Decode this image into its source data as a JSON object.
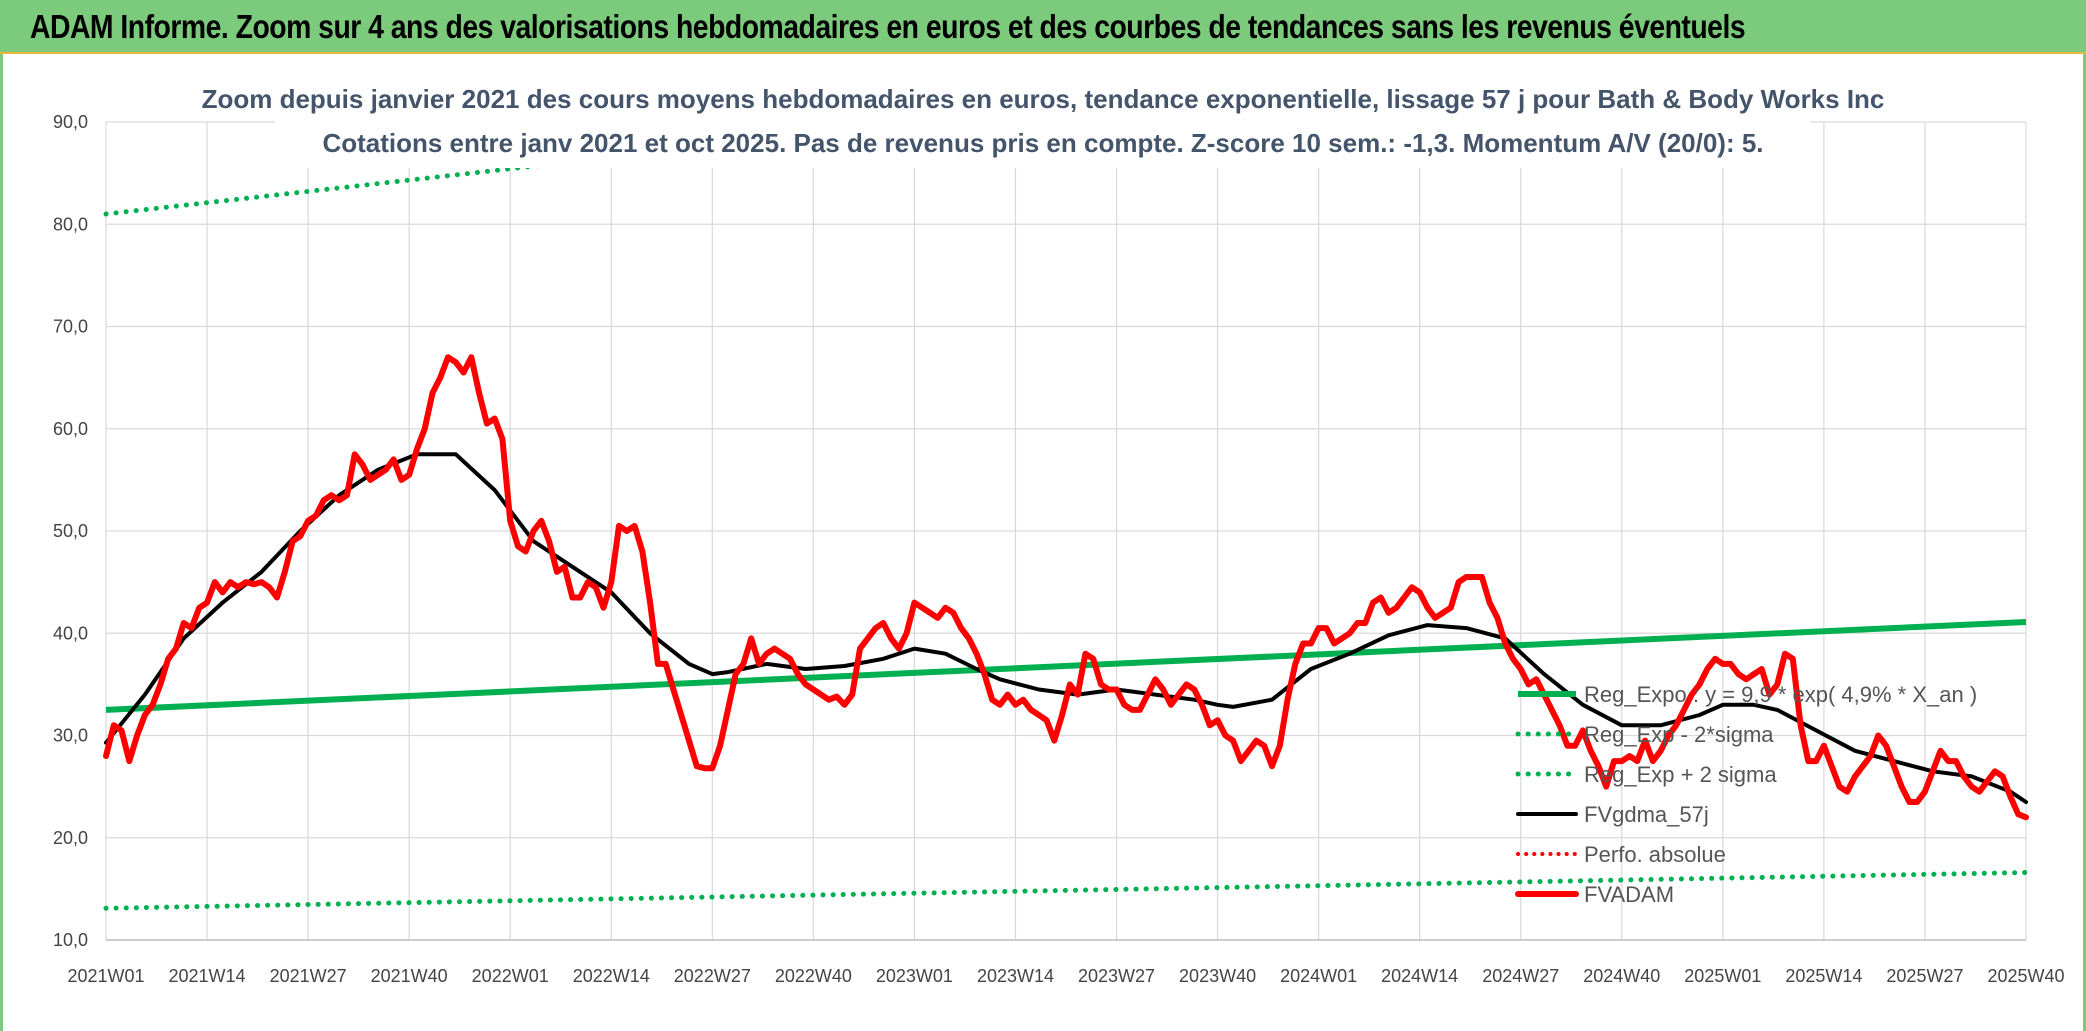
{
  "header": {
    "title": "ADAM Informe. Zoom sur 4 ans des valorisations hebdomadaires en euros et des courbes de tendances sans les revenus éventuels"
  },
  "chart_data": {
    "type": "line",
    "title": "Zoom depuis janvier 2021 des cours moyens hebdomadaires en euros, tendance exponentielle, lissage 57 j pour Bath & Body Works Inc",
    "subtitle": "Cotations entre janv 2021 et oct 2025. Pas de revenus pris en compte. Z-score 10 sem.: -1,3. Momentum A/V (20/0): 5.",
    "ylim": [
      10,
      90
    ],
    "yticks": [
      "10,0",
      "20,0",
      "30,0",
      "40,0",
      "50,0",
      "60,0",
      "70,0",
      "80,0",
      "90,0"
    ],
    "x_tick_labels": [
      "2021W01",
      "2021W14",
      "2021W27",
      "2021W40",
      "2022W01",
      "2022W14",
      "2022W27",
      "2022W40",
      "2023W01",
      "2023W14",
      "2023W27",
      "2023W40",
      "2024W01",
      "2024W14",
      "2024W27",
      "2024W40",
      "2025W01",
      "2025W14",
      "2025W27",
      "2025W40"
    ],
    "x_tick_weeks": [
      0,
      13,
      26,
      39,
      52,
      65,
      78,
      91,
      104,
      117,
      130,
      143,
      156,
      169,
      182,
      195,
      208,
      221,
      234,
      247
    ],
    "grid": true,
    "legend_position": "right",
    "colors": {
      "green": "#00b050",
      "black": "#000000",
      "red": "#ff0000",
      "red_dotted": "#ff0000"
    },
    "series": [
      {
        "name": "Reg_Expo : y = 9,9 * exp( 4,9% *  X_an )",
        "style": "solid-green",
        "points": [
          [
            0,
            32.5
          ],
          [
            247,
            41.1
          ]
        ]
      },
      {
        "name": "Reg_Exp - 2*sigma",
        "style": "dotted-green",
        "points": [
          [
            0,
            13.1
          ],
          [
            247,
            16.6
          ]
        ]
      },
      {
        "name": "Reg_Exp + 2 sigma",
        "style": "dotted-green",
        "points": [
          [
            0,
            81.0
          ],
          [
            247,
            102.0
          ]
        ]
      },
      {
        "name": "FVgdma_57j",
        "style": "solid-black",
        "points": [
          [
            0,
            29.3
          ],
          [
            5,
            34
          ],
          [
            10,
            39.5
          ],
          [
            15,
            43
          ],
          [
            20,
            46
          ],
          [
            25,
            50
          ],
          [
            30,
            53.5
          ],
          [
            35,
            56
          ],
          [
            40,
            57.5
          ],
          [
            45,
            57.5
          ],
          [
            50,
            54
          ],
          [
            55,
            49
          ],
          [
            60,
            46.5
          ],
          [
            65,
            44
          ],
          [
            70,
            40
          ],
          [
            75,
            37
          ],
          [
            78,
            36
          ],
          [
            80,
            36.2
          ],
          [
            85,
            37
          ],
          [
            90,
            36.5
          ],
          [
            95,
            36.8
          ],
          [
            100,
            37.5
          ],
          [
            104,
            38.5
          ],
          [
            108,
            38
          ],
          [
            112,
            36.5
          ],
          [
            115,
            35.5
          ],
          [
            120,
            34.5
          ],
          [
            125,
            34
          ],
          [
            130,
            34.5
          ],
          [
            135,
            34
          ],
          [
            140,
            33.5
          ],
          [
            143,
            33
          ],
          [
            145,
            32.8
          ],
          [
            150,
            33.5
          ],
          [
            155,
            36.5
          ],
          [
            160,
            38
          ],
          [
            165,
            39.8
          ],
          [
            170,
            40.8
          ],
          [
            175,
            40.5
          ],
          [
            180,
            39.5
          ],
          [
            185,
            36
          ],
          [
            190,
            33
          ],
          [
            195,
            31
          ],
          [
            200,
            31
          ],
          [
            205,
            32
          ],
          [
            208,
            33
          ],
          [
            212,
            33
          ],
          [
            215,
            32.5
          ],
          [
            220,
            30.5
          ],
          [
            225,
            28.5
          ],
          [
            230,
            27.5
          ],
          [
            235,
            26.5
          ],
          [
            240,
            26
          ],
          [
            245,
            24.5
          ],
          [
            247,
            23.5
          ]
        ]
      },
      {
        "name": "Perfo. absolue",
        "style": "dotted-red",
        "points": []
      },
      {
        "name": "FVADAM",
        "style": "solid-red",
        "points": [
          [
            0,
            28
          ],
          [
            1,
            31
          ],
          [
            2,
            30.5
          ],
          [
            3,
            27.5
          ],
          [
            4,
            30
          ],
          [
            5,
            32
          ],
          [
            6,
            33
          ],
          [
            7,
            35
          ],
          [
            8,
            37.5
          ],
          [
            9,
            38.5
          ],
          [
            10,
            41
          ],
          [
            11,
            40.5
          ],
          [
            12,
            42.5
          ],
          [
            13,
            43
          ],
          [
            14,
            45
          ],
          [
            15,
            44
          ],
          [
            16,
            45
          ],
          [
            17,
            44.5
          ],
          [
            18,
            45
          ],
          [
            19,
            44.8
          ],
          [
            20,
            45
          ],
          [
            21,
            44.5
          ],
          [
            22,
            43.5
          ],
          [
            23,
            46
          ],
          [
            24,
            49
          ],
          [
            25,
            49.5
          ],
          [
            26,
            51
          ],
          [
            27,
            51.5
          ],
          [
            28,
            53
          ],
          [
            29,
            53.5
          ],
          [
            30,
            53
          ],
          [
            31,
            53.5
          ],
          [
            32,
            57.5
          ],
          [
            33,
            56.5
          ],
          [
            34,
            55
          ],
          [
            35,
            55.5
          ],
          [
            36,
            56
          ],
          [
            37,
            57
          ],
          [
            38,
            55
          ],
          [
            39,
            55.5
          ],
          [
            40,
            58
          ],
          [
            41,
            60
          ],
          [
            42,
            63.5
          ],
          [
            43,
            65
          ],
          [
            44,
            67
          ],
          [
            45,
            66.5
          ],
          [
            46,
            65.5
          ],
          [
            47,
            67
          ],
          [
            48,
            63.5
          ],
          [
            49,
            60.5
          ],
          [
            50,
            61
          ],
          [
            51,
            59
          ],
          [
            52,
            51
          ],
          [
            53,
            48.5
          ],
          [
            54,
            48
          ],
          [
            55,
            50
          ],
          [
            56,
            51
          ],
          [
            57,
            49
          ],
          [
            58,
            46
          ],
          [
            59,
            46.5
          ],
          [
            60,
            43.5
          ],
          [
            61,
            43.5
          ],
          [
            62,
            45
          ],
          [
            63,
            44.5
          ],
          [
            64,
            42.5
          ],
          [
            65,
            45
          ],
          [
            66,
            50.5
          ],
          [
            67,
            50
          ],
          [
            68,
            50.5
          ],
          [
            69,
            48
          ],
          [
            70,
            43
          ],
          [
            71,
            37
          ],
          [
            72,
            37
          ],
          [
            73,
            34.5
          ],
          [
            74,
            32
          ],
          [
            75,
            29.5
          ],
          [
            76,
            27
          ],
          [
            77,
            26.8
          ],
          [
            78,
            26.8
          ],
          [
            79,
            29
          ],
          [
            80,
            32.5
          ],
          [
            81,
            36
          ],
          [
            82,
            37
          ],
          [
            83,
            39.5
          ],
          [
            84,
            37
          ],
          [
            85,
            38
          ],
          [
            86,
            38.5
          ],
          [
            87,
            38
          ],
          [
            88,
            37.5
          ],
          [
            89,
            36
          ],
          [
            90,
            35
          ],
          [
            91,
            34.5
          ],
          [
            92,
            34
          ],
          [
            93,
            33.5
          ],
          [
            94,
            33.8
          ],
          [
            95,
            33
          ],
          [
            96,
            34
          ],
          [
            97,
            38.5
          ],
          [
            98,
            39.5
          ],
          [
            99,
            40.5
          ],
          [
            100,
            41
          ],
          [
            101,
            39.5
          ],
          [
            102,
            38.5
          ],
          [
            103,
            40
          ],
          [
            104,
            43
          ],
          [
            105,
            42.5
          ],
          [
            106,
            42
          ],
          [
            107,
            41.5
          ],
          [
            108,
            42.5
          ],
          [
            109,
            42
          ],
          [
            110,
            40.5
          ],
          [
            111,
            39.5
          ],
          [
            112,
            38
          ],
          [
            113,
            36
          ],
          [
            114,
            33.5
          ],
          [
            115,
            33
          ],
          [
            116,
            34
          ],
          [
            117,
            33
          ],
          [
            118,
            33.5
          ],
          [
            119,
            32.5
          ],
          [
            120,
            32
          ],
          [
            121,
            31.5
          ],
          [
            122,
            29.5
          ],
          [
            123,
            32
          ],
          [
            124,
            35
          ],
          [
            125,
            34
          ],
          [
            126,
            38
          ],
          [
            127,
            37.5
          ],
          [
            128,
            35
          ],
          [
            129,
            34.5
          ],
          [
            130,
            34.5
          ],
          [
            131,
            33
          ],
          [
            132,
            32.5
          ],
          [
            133,
            32.5
          ],
          [
            134,
            34
          ],
          [
            135,
            35.5
          ],
          [
            136,
            34.5
          ],
          [
            137,
            33
          ],
          [
            138,
            34
          ],
          [
            139,
            35
          ],
          [
            140,
            34.5
          ],
          [
            141,
            33
          ],
          [
            142,
            31
          ],
          [
            143,
            31.5
          ],
          [
            144,
            30
          ],
          [
            145,
            29.5
          ],
          [
            146,
            27.5
          ],
          [
            147,
            28.5
          ],
          [
            148,
            29.5
          ],
          [
            149,
            29
          ],
          [
            150,
            27
          ],
          [
            151,
            29
          ],
          [
            152,
            33.5
          ],
          [
            153,
            37
          ],
          [
            154,
            39
          ],
          [
            155,
            39
          ],
          [
            156,
            40.5
          ],
          [
            157,
            40.5
          ],
          [
            158,
            39
          ],
          [
            159,
            39.5
          ],
          [
            160,
            40
          ],
          [
            161,
            41
          ],
          [
            162,
            41
          ],
          [
            163,
            43
          ],
          [
            164,
            43.5
          ],
          [
            165,
            42
          ],
          [
            166,
            42.5
          ],
          [
            167,
            43.5
          ],
          [
            168,
            44.5
          ],
          [
            169,
            44
          ],
          [
            170,
            42.5
          ],
          [
            171,
            41.5
          ],
          [
            172,
            42
          ],
          [
            173,
            42.5
          ],
          [
            174,
            45
          ],
          [
            175,
            45.5
          ],
          [
            176,
            45.5
          ],
          [
            177,
            45.5
          ],
          [
            178,
            43
          ],
          [
            179,
            41.5
          ],
          [
            180,
            39
          ],
          [
            181,
            37.5
          ],
          [
            182,
            36.5
          ],
          [
            183,
            35
          ],
          [
            184,
            35.5
          ],
          [
            185,
            34
          ],
          [
            186,
            32.5
          ],
          [
            187,
            31
          ],
          [
            188,
            29
          ],
          [
            189,
            29
          ],
          [
            190,
            30.5
          ],
          [
            191,
            28.5
          ],
          [
            192,
            27
          ],
          [
            193,
            25
          ],
          [
            194,
            27.5
          ],
          [
            195,
            27.5
          ],
          [
            196,
            28
          ],
          [
            197,
            27.5
          ],
          [
            198,
            29.5
          ],
          [
            199,
            27.5
          ],
          [
            200,
            28.5
          ],
          [
            201,
            30
          ],
          [
            202,
            31
          ],
          [
            203,
            32.5
          ],
          [
            204,
            34
          ],
          [
            205,
            35
          ],
          [
            206,
            36.5
          ],
          [
            207,
            37.5
          ],
          [
            208,
            37
          ],
          [
            209,
            37
          ],
          [
            210,
            36
          ],
          [
            211,
            35.5
          ],
          [
            212,
            36
          ],
          [
            213,
            36.5
          ],
          [
            214,
            34
          ],
          [
            215,
            35
          ],
          [
            216,
            38
          ],
          [
            217,
            37.5
          ],
          [
            218,
            31
          ],
          [
            219,
            27.5
          ],
          [
            220,
            27.5
          ],
          [
            221,
            29
          ],
          [
            222,
            27
          ],
          [
            223,
            25
          ],
          [
            224,
            24.5
          ],
          [
            225,
            26
          ],
          [
            226,
            27
          ],
          [
            227,
            28
          ],
          [
            228,
            30
          ],
          [
            229,
            29
          ],
          [
            230,
            27
          ],
          [
            231,
            25
          ],
          [
            232,
            23.5
          ],
          [
            233,
            23.5
          ],
          [
            234,
            24.5
          ],
          [
            235,
            26.5
          ],
          [
            236,
            28.5
          ],
          [
            237,
            27.5
          ],
          [
            238,
            27.5
          ],
          [
            239,
            26
          ],
          [
            240,
            25
          ],
          [
            241,
            24.5
          ],
          [
            242,
            25.5
          ],
          [
            243,
            26.5
          ],
          [
            244,
            26
          ],
          [
            245,
            24
          ],
          [
            246,
            22.3
          ],
          [
            247,
            22
          ]
        ]
      }
    ]
  }
}
